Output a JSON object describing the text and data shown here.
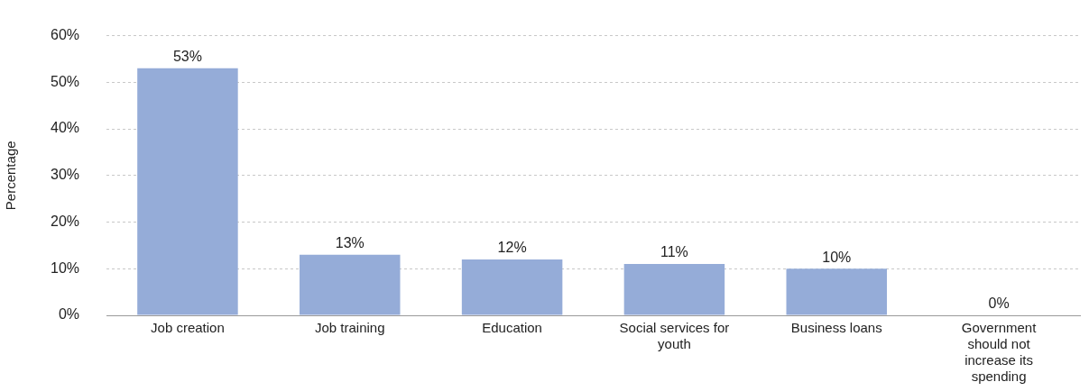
{
  "chart_data": {
    "type": "bar",
    "ylabel": "Percentage",
    "categories": [
      "Job creation",
      "Job training",
      "Education",
      "Social services for youth",
      "Business loans",
      "Government should not increase its spending"
    ],
    "values": [
      53,
      13,
      12,
      11,
      10,
      0
    ],
    "value_labels": [
      "53%",
      "13%",
      "12%",
      "11%",
      "10%",
      "0%"
    ],
    "color": "#95acd8",
    "ylim": [
      0,
      60
    ],
    "yticks": [
      {
        "value": 0,
        "label": "0%"
      },
      {
        "value": 10,
        "label": "10%"
      },
      {
        "value": 20,
        "label": "20%"
      },
      {
        "value": 30,
        "label": "30%"
      },
      {
        "value": 40,
        "label": "40%"
      },
      {
        "value": 50,
        "label": "50%"
      },
      {
        "value": 60,
        "label": "60%"
      }
    ],
    "grid": "y",
    "legend": false
  }
}
